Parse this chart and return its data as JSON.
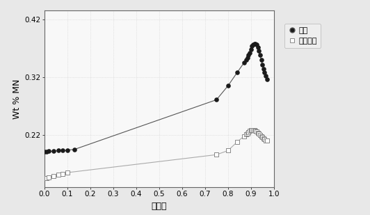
{
  "title": "",
  "xlabel": "固相率",
  "ylabel": "Wt % MN",
  "xlim": [
    0.0,
    1.0
  ],
  "ylim": [
    0.13,
    0.435
  ],
  "yticks": [
    0.22,
    0.32,
    0.42
  ],
  "ytick_labels": [
    "0.22",
    "0.32",
    "0.42"
  ],
  "xticks": [
    0.0,
    0.1,
    0.2,
    0.3,
    0.4,
    0.5,
    0.6,
    0.7,
    0.8,
    0.9,
    1.0
  ],
  "xtick_labels": [
    "0.0",
    "0.1",
    "0.2",
    "0.3",
    "0.4",
    "0.5",
    "0.6",
    "0.7",
    "0.8",
    "0.9",
    "1.0"
  ],
  "liquid_x": [
    0.0,
    0.01,
    0.02,
    0.04,
    0.06,
    0.08,
    0.1,
    0.13,
    0.75,
    0.8,
    0.84,
    0.87,
    0.88,
    0.885,
    0.89,
    0.895,
    0.9,
    0.905,
    0.91,
    0.915,
    0.92,
    0.925,
    0.93,
    0.935,
    0.94,
    0.945,
    0.95,
    0.955,
    0.96,
    0.965,
    0.97
  ],
  "liquid_y": [
    0.191,
    0.191,
    0.192,
    0.192,
    0.193,
    0.193,
    0.194,
    0.195,
    0.281,
    0.305,
    0.328,
    0.345,
    0.35,
    0.354,
    0.358,
    0.362,
    0.368,
    0.374,
    0.376,
    0.378,
    0.378,
    0.376,
    0.372,
    0.366,
    0.358,
    0.35,
    0.342,
    0.334,
    0.328,
    0.322,
    0.316
  ],
  "austenite_x": [
    0.0,
    0.01,
    0.02,
    0.04,
    0.06,
    0.08,
    0.1,
    0.75,
    0.8,
    0.84,
    0.87,
    0.88,
    0.885,
    0.89,
    0.895,
    0.9,
    0.905,
    0.91,
    0.915,
    0.92,
    0.925,
    0.93,
    0.935,
    0.94,
    0.945,
    0.95,
    0.955,
    0.96,
    0.965,
    0.97
  ],
  "austenite_y": [
    0.145,
    0.146,
    0.147,
    0.149,
    0.151,
    0.153,
    0.155,
    0.186,
    0.193,
    0.208,
    0.218,
    0.221,
    0.223,
    0.225,
    0.227,
    0.228,
    0.229,
    0.229,
    0.228,
    0.227,
    0.226,
    0.224,
    0.222,
    0.22,
    0.218,
    0.216,
    0.214,
    0.213,
    0.211,
    0.21
  ],
  "liquid_color": "#1a1a1a",
  "austenite_color": "#888888",
  "line_color_liquid": "#555555",
  "line_color_austenite": "#aaaaaa",
  "background_color": "#e8e8e8",
  "plot_bg_color": "#f8f8f8",
  "legend_liquid": "液相",
  "legend_austenite": "奋氏体相",
  "grid_color": "#d0d0d0"
}
